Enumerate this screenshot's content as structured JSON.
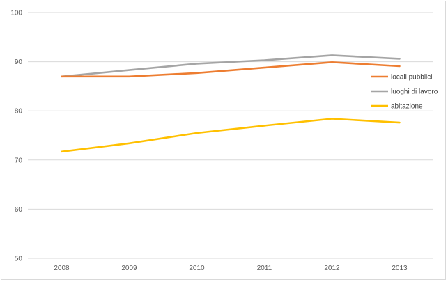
{
  "chart_data": {
    "type": "line",
    "title": "",
    "xlabel": "",
    "ylabel": "",
    "x": [
      "2008",
      "2009",
      "2010",
      "2011",
      "2012",
      "2013"
    ],
    "ylim": [
      50,
      100
    ],
    "yticks": [
      50,
      60,
      70,
      80,
      90,
      100
    ],
    "grid": true,
    "legend_position": "right",
    "series": [
      {
        "name": "locali pubblici",
        "color": "#ed7d31",
        "values": [
          87.0,
          87.0,
          87.7,
          88.8,
          89.9,
          89.1
        ]
      },
      {
        "name": "luoghi di lavoro",
        "color": "#a5a5a5",
        "values": [
          87.0,
          88.3,
          89.6,
          90.3,
          91.3,
          90.6
        ]
      },
      {
        "name": "abitazione",
        "color": "#ffc000",
        "values": [
          71.7,
          73.4,
          75.5,
          77.0,
          78.4,
          77.6
        ]
      }
    ]
  }
}
